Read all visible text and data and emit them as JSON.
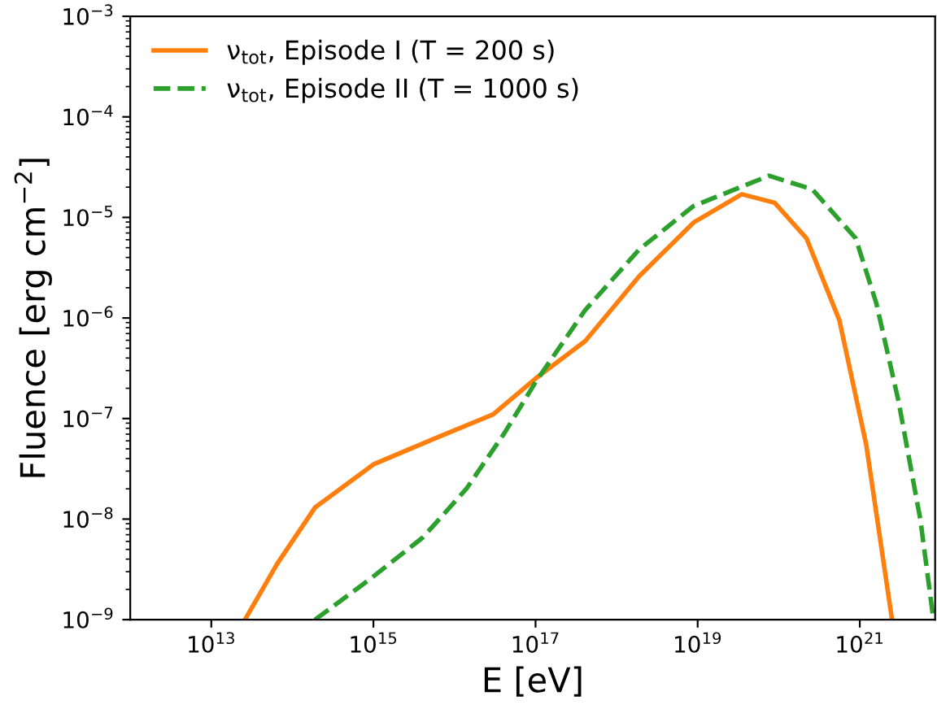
{
  "chart_data": {
    "type": "line",
    "xlabel": "E [eV]",
    "ylabel": "Fluence [erg cm$^{−2}$]",
    "log": "xy",
    "xlim": [
      1000000000000.0,
      8.5e+21
    ],
    "ylim": [
      1e-09,
      0.001
    ],
    "xticks": [
      {
        "value": 10000000000000.0,
        "label": "10$^{13}$"
      },
      {
        "value": 1000000000000000.0,
        "label": "10$^{15}$"
      },
      {
        "value": 1e+17,
        "label": "10$^{17}$"
      },
      {
        "value": 1e+19,
        "label": "10$^{19}$"
      },
      {
        "value": 1e+21,
        "label": "10$^{21}$"
      }
    ],
    "yticks": [
      {
        "value": 1e-09,
        "label": "10$^{−9}$"
      },
      {
        "value": 1e-08,
        "label": "10$^{−8}$"
      },
      {
        "value": 1e-07,
        "label": "10$^{−7}$"
      },
      {
        "value": 1e-06,
        "label": "10$^{−6}$"
      },
      {
        "value": 1e-05,
        "label": "10$^{−5}$"
      },
      {
        "value": 0.0001,
        "label": "10$^{−4}$"
      },
      {
        "value": 0.001,
        "label": "10$^{−3}$"
      }
    ],
    "grid": false,
    "legend": "top left",
    "series": [
      {
        "name": "ν$_{tot}$, Episode I (T = 200 s)",
        "color": "#ff7f0e",
        "line_style": "solid",
        "x": [
          26000000000000.0,
          65000000000000.0,
          190000000000000.0,
          1000000000000000.0,
          5600000000000000.0,
          3e+16,
          1e+17,
          4.1e+17,
          1.9e+18,
          8.9e+18,
          3.5e+19,
          8.9e+19,
          2.2e+20,
          5.6e+20,
          1.2e+21,
          2.5e+21
        ],
        "values": [
          1e-09,
          3.6e-09,
          1.3e-08,
          3.5e-08,
          6.3e-08,
          1.1e-07,
          2.5e-07,
          5.9e-07,
          2.6e-06,
          8.9e-06,
          1.7e-05,
          1.4e-05,
          6.2e-06,
          9.5e-07,
          5.5e-08,
          1e-09
        ]
      },
      {
        "name": "ν$_{tot}$, Episode II (T = 1000 s)",
        "color": "#2ca02c",
        "line_style": "dashed",
        "x": [
          190000000000000.0,
          890000000000000.0,
          4100000000000000.0,
          1.4e+16,
          4.1e+16,
          1e+17,
          4.1e+17,
          1.9e+18,
          8.9e+18,
          7.6e+19,
          2.6e+20,
          8.9e+20,
          1.6e+21,
          3e+21,
          5.6e+21,
          8.1e+21
        ],
        "values": [
          1e-09,
          2.5e-09,
          6.6e-09,
          2e-08,
          7.1e-08,
          2.3e-07,
          1.2e-06,
          4.8e-06,
          1.3e-05,
          2.6e-05,
          1.9e-05,
          6.2e-06,
          1.4e-06,
          1.5e-07,
          9.8e-09,
          1e-09
        ]
      }
    ]
  }
}
